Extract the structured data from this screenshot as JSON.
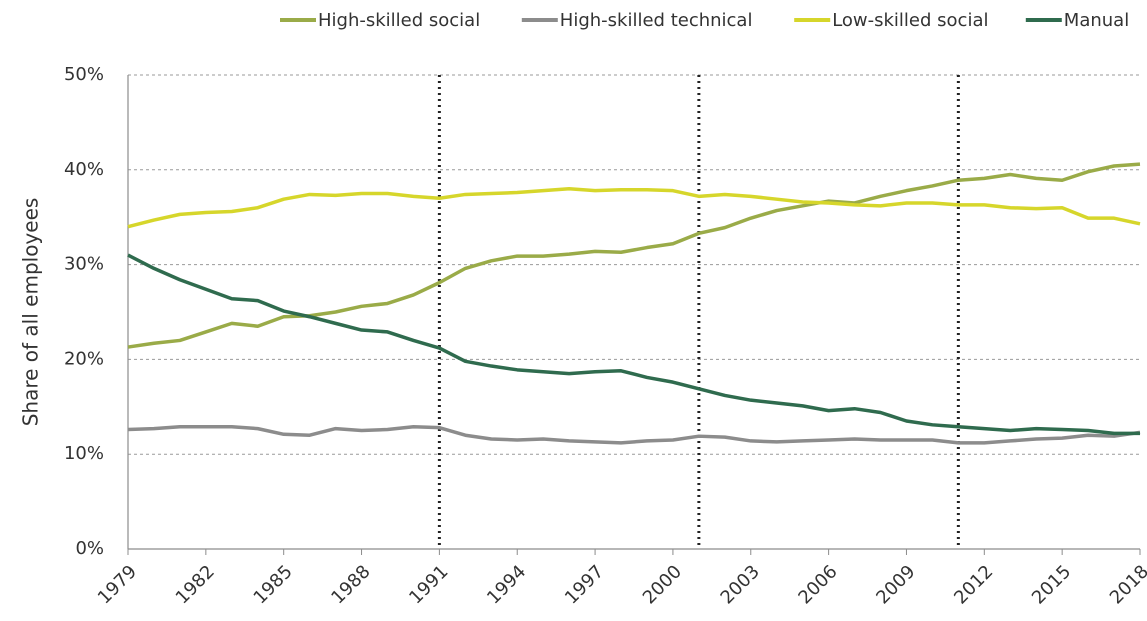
{
  "chart_data": {
    "type": "line",
    "y_label": "Share of all employees",
    "x": [
      1979,
      1980,
      1981,
      1982,
      1983,
      1984,
      1985,
      1986,
      1987,
      1988,
      1989,
      1990,
      1991,
      1992,
      1993,
      1994,
      1995,
      1996,
      1997,
      1998,
      1999,
      2000,
      2001,
      2002,
      2003,
      2004,
      2005,
      2006,
      2007,
      2008,
      2009,
      2010,
      2011,
      2012,
      2013,
      2014,
      2015,
      2016,
      2017,
      2018
    ],
    "series": [
      {
        "name": "High-skilled social",
        "color": "#9aab48",
        "values": [
          21.3,
          21.7,
          22.0,
          22.9,
          23.8,
          23.5,
          24.5,
          24.6,
          25.0,
          25.6,
          25.9,
          26.8,
          28.1,
          29.6,
          30.4,
          30.9,
          30.9,
          31.1,
          31.4,
          31.3,
          31.8,
          32.2,
          33.3,
          33.9,
          34.9,
          35.7,
          36.2,
          36.7,
          36.5,
          37.2,
          37.8,
          38.3,
          38.9,
          39.1,
          39.5,
          39.1,
          38.9,
          39.8,
          40.4,
          40.6
        ]
      },
      {
        "name": "High-skilled technical",
        "color": "#8c8c8c",
        "values": [
          12.6,
          12.7,
          12.9,
          12.9,
          12.9,
          12.7,
          12.1,
          12.0,
          12.7,
          12.5,
          12.6,
          12.9,
          12.8,
          12.0,
          11.6,
          11.5,
          11.6,
          11.4,
          11.3,
          11.2,
          11.4,
          11.5,
          11.9,
          11.8,
          11.4,
          11.3,
          11.4,
          11.5,
          11.6,
          11.5,
          11.5,
          11.5,
          11.2,
          11.2,
          11.4,
          11.6,
          11.7,
          12.0,
          11.9,
          12.3
        ]
      },
      {
        "name": "Low-skilled social",
        "color": "#d6d62b",
        "values": [
          34.0,
          34.7,
          35.3,
          35.5,
          35.6,
          36.0,
          36.9,
          37.4,
          37.3,
          37.5,
          37.5,
          37.2,
          37.0,
          37.4,
          37.5,
          37.6,
          37.8,
          38.0,
          37.8,
          37.9,
          37.9,
          37.8,
          37.2,
          37.4,
          37.2,
          36.9,
          36.6,
          36.5,
          36.3,
          36.2,
          36.5,
          36.5,
          36.3,
          36.3,
          36.0,
          35.9,
          36.0,
          34.9,
          34.9,
          34.3
        ]
      },
      {
        "name": "Manual",
        "color": "#2f6b4e",
        "values": [
          31.0,
          29.6,
          28.4,
          27.4,
          26.4,
          26.2,
          25.1,
          24.5,
          23.8,
          23.1,
          22.9,
          22.0,
          21.2,
          19.8,
          19.3,
          18.9,
          18.7,
          18.5,
          18.7,
          18.8,
          18.1,
          17.6,
          16.9,
          16.2,
          15.7,
          15.4,
          15.1,
          14.6,
          14.8,
          14.4,
          13.5,
          13.1,
          12.9,
          12.7,
          12.5,
          12.7,
          12.6,
          12.5,
          12.2,
          12.2
        ]
      }
    ],
    "xlim": [
      1979,
      2018
    ],
    "xticks": [
      1979,
      1982,
      1985,
      1988,
      1991,
      1994,
      1997,
      2000,
      2003,
      2006,
      2009,
      2012,
      2015,
      2018
    ],
    "ylim": [
      0,
      50
    ],
    "yticks": [
      {
        "value": 0,
        "label": "0%"
      },
      {
        "value": 10,
        "label": "10%"
      },
      {
        "value": 20,
        "label": "20%"
      },
      {
        "value": 30,
        "label": "30%"
      },
      {
        "value": 40,
        "label": "40%"
      },
      {
        "value": 50,
        "label": "50%"
      }
    ],
    "vlines": [
      1991,
      2001,
      2011
    ],
    "grid": true,
    "legend": "top"
  }
}
